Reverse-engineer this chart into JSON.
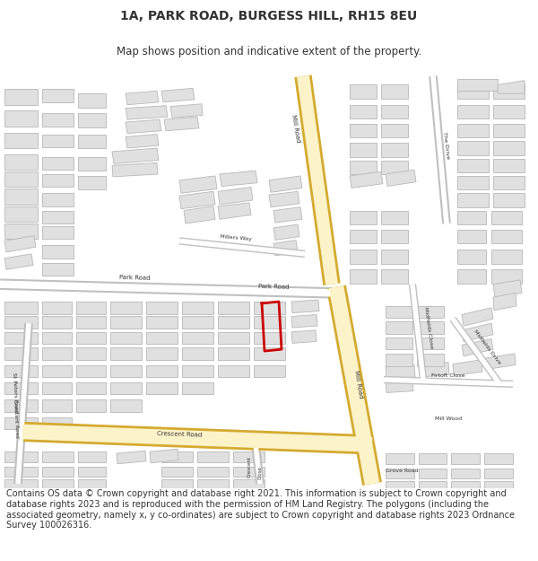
{
  "title_line1": "1A, PARK ROAD, BURGESS HILL, RH15 8EU",
  "title_line2": "Map shows position and indicative extent of the property.",
  "disclaimer": "Contains OS data © Crown copyright and database right 2021. This information is subject to Crown copyright and database rights 2023 and is reproduced with the permission of HM Land Registry. The polygons (including the associated geometry, namely x, y co-ordinates) are subject to Crown copyright and database rights 2023 Ordnance Survey 100026316.",
  "bg_color": "#ffffff",
  "map_bg": "#f8f8f8",
  "road_yellow_fill": "#fdf3c8",
  "road_yellow_edge": "#d4aa30",
  "road_gray_fill": "#ffffff",
  "road_gray_edge": "#c0c0c0",
  "building_fill": "#e0e0e0",
  "building_edge": "#b8b8b8",
  "red_plot": "#cc0000",
  "text_color": "#333333",
  "label_fontsize": 5.0,
  "title_fontsize": 10,
  "subtitle_fontsize": 8.5,
  "disclaimer_fontsize": 7.0
}
